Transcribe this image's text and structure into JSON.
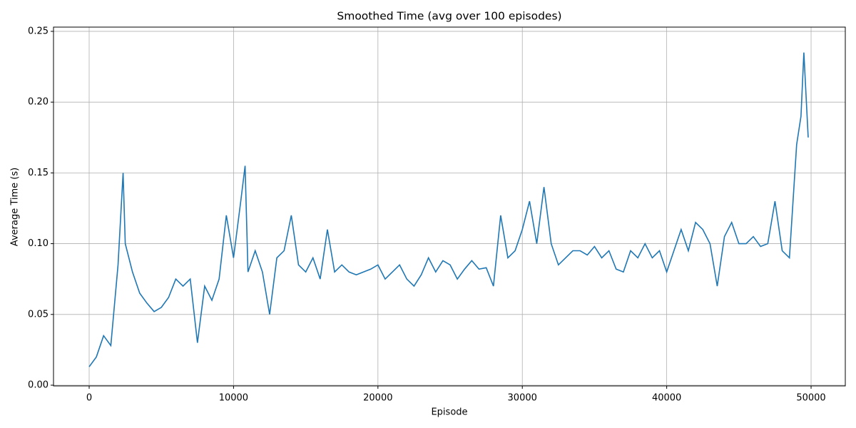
{
  "chart_data": {
    "type": "line",
    "title": "Smoothed Time (avg over 100 episodes)",
    "xlabel": "Episode",
    "ylabel": "Average Time (s)",
    "x": [
      0,
      500,
      1000,
      1500,
      2000,
      2350,
      2500,
      3000,
      3500,
      4000,
      4500,
      5000,
      5500,
      6000,
      6500,
      7000,
      7500,
      8000,
      8500,
      9000,
      9500,
      10000,
      10500,
      10800,
      11000,
      11500,
      12000,
      12500,
      13000,
      13500,
      14000,
      14500,
      15000,
      15500,
      16000,
      16500,
      17000,
      17500,
      18000,
      18500,
      19000,
      19500,
      20000,
      20500,
      21000,
      21500,
      22000,
      22500,
      23000,
      23500,
      24000,
      24500,
      25000,
      25500,
      26000,
      26500,
      27000,
      27500,
      28000,
      28500,
      29000,
      29500,
      30000,
      30500,
      31000,
      31500,
      32000,
      32500,
      33000,
      33500,
      34000,
      34500,
      35000,
      35500,
      36000,
      36500,
      37000,
      37500,
      38000,
      38500,
      39000,
      39500,
      40000,
      40500,
      41000,
      41500,
      42000,
      42500,
      43000,
      43500,
      44000,
      44500,
      45000,
      45500,
      46000,
      46500,
      47000,
      47500,
      48000,
      48500,
      49000,
      49300,
      49500,
      49800
    ],
    "series": [
      {
        "name": "Smoothed Time",
        "color": "#1f77b4",
        "values": [
          0.013,
          0.02,
          0.035,
          0.028,
          0.085,
          0.15,
          0.1,
          0.08,
          0.065,
          0.058,
          0.052,
          0.055,
          0.062,
          0.075,
          0.07,
          0.075,
          0.03,
          0.07,
          0.06,
          0.075,
          0.12,
          0.09,
          0.13,
          0.155,
          0.08,
          0.095,
          0.08,
          0.05,
          0.09,
          0.095,
          0.12,
          0.085,
          0.08,
          0.09,
          0.075,
          0.11,
          0.08,
          0.085,
          0.08,
          0.078,
          0.08,
          0.082,
          0.085,
          0.075,
          0.08,
          0.085,
          0.075,
          0.07,
          0.078,
          0.09,
          0.08,
          0.088,
          0.085,
          0.075,
          0.082,
          0.088,
          0.082,
          0.083,
          0.07,
          0.12,
          0.09,
          0.095,
          0.11,
          0.13,
          0.1,
          0.14,
          0.1,
          0.085,
          0.09,
          0.095,
          0.095,
          0.092,
          0.098,
          0.09,
          0.095,
          0.082,
          0.08,
          0.095,
          0.09,
          0.1,
          0.09,
          0.095,
          0.08,
          0.095,
          0.11,
          0.095,
          0.115,
          0.11,
          0.1,
          0.07,
          0.105,
          0.115,
          0.1,
          0.1,
          0.105,
          0.098,
          0.1,
          0.13,
          0.095,
          0.09,
          0.17,
          0.19,
          0.235,
          0.175
        ]
      }
    ],
    "xlim": [
      -2470,
      52370
    ],
    "ylim": [
      -0.0005,
      0.253
    ],
    "xticks": [
      0,
      10000,
      20000,
      30000,
      40000,
      50000
    ],
    "yticks": [
      {
        "value": 0,
        "label": "0.00"
      },
      {
        "value": 0.05,
        "label": "0.05"
      },
      {
        "value": 0.1,
        "label": "0.10"
      },
      {
        "value": 0.15,
        "label": "0.15"
      },
      {
        "value": 0.2,
        "label": "0.20"
      },
      {
        "value": 0.25,
        "label": "0.25"
      }
    ],
    "grid": true
  }
}
